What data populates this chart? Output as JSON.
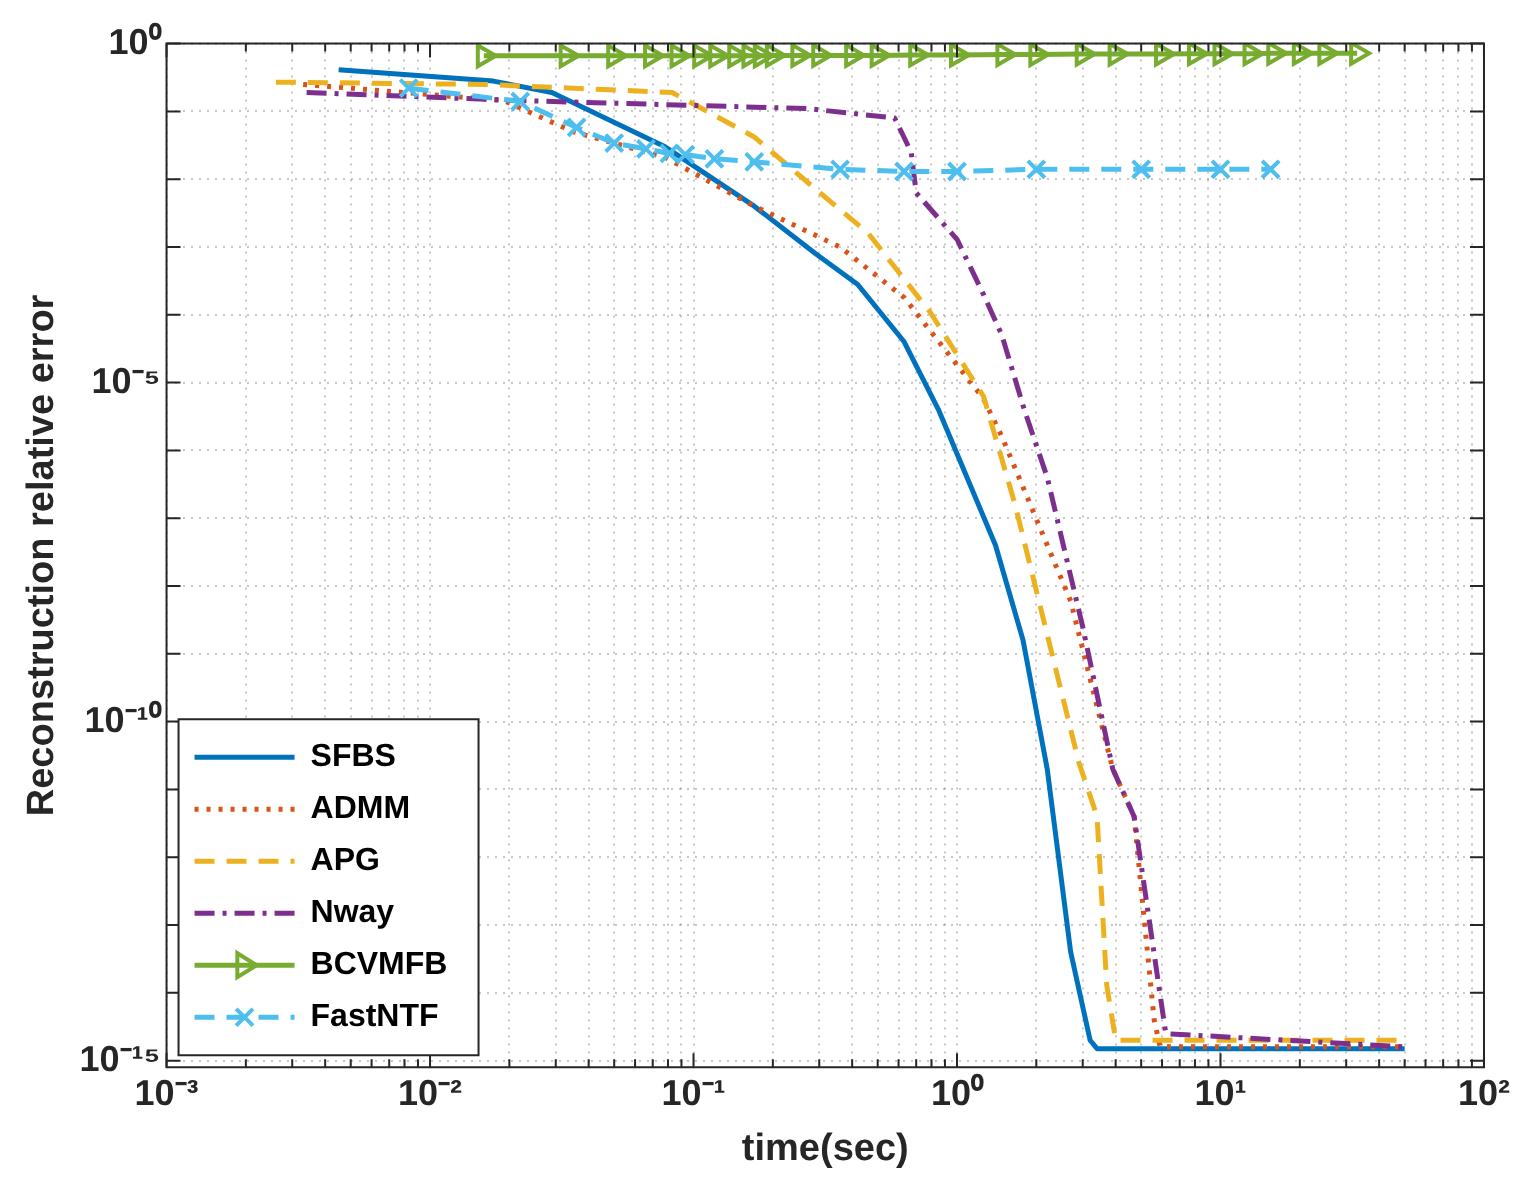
{
  "chart_data": {
    "type": "line",
    "xlabel": "time(sec)",
    "ylabel": "Reconstruction relative error",
    "log": "xy",
    "grid": true,
    "legend": "bottom left",
    "xlim": [
      0.001,
      100
    ],
    "xticks": [
      {
        "value": 0.001,
        "label": "10⁻³"
      },
      {
        "value": 0.002,
        "label": null
      },
      {
        "value": 0.003,
        "label": null
      },
      {
        "value": 0.004,
        "label": null
      },
      {
        "value": 0.005,
        "label": null
      },
      {
        "value": 0.006,
        "label": null
      },
      {
        "value": 0.007,
        "label": null
      },
      {
        "value": 0.008,
        "label": null
      },
      {
        "value": 0.009,
        "label": null
      },
      {
        "value": 0.01,
        "label": "10⁻²"
      },
      {
        "value": 0.02,
        "label": null
      },
      {
        "value": 0.03,
        "label": null
      },
      {
        "value": 0.04,
        "label": null
      },
      {
        "value": 0.05,
        "label": null
      },
      {
        "value": 0.06,
        "label": null
      },
      {
        "value": 0.07,
        "label": null
      },
      {
        "value": 0.08,
        "label": null
      },
      {
        "value": 0.09,
        "label": null
      },
      {
        "value": 0.1,
        "label": "10⁻¹"
      },
      {
        "value": 0.2,
        "label": null
      },
      {
        "value": 0.3,
        "label": null
      },
      {
        "value": 0.4,
        "label": null
      },
      {
        "value": 0.5,
        "label": null
      },
      {
        "value": 0.6,
        "label": null
      },
      {
        "value": 0.7,
        "label": null
      },
      {
        "value": 0.8,
        "label": null
      },
      {
        "value": 0.9,
        "label": null
      },
      {
        "value": 1,
        "label": "10⁰"
      },
      {
        "value": 2,
        "label": null
      },
      {
        "value": 3,
        "label": null
      },
      {
        "value": 4,
        "label": null
      },
      {
        "value": 5,
        "label": null
      },
      {
        "value": 6,
        "label": null
      },
      {
        "value": 7,
        "label": null
      },
      {
        "value": 8,
        "label": null
      },
      {
        "value": 9,
        "label": null
      },
      {
        "value": 10,
        "label": "10¹"
      },
      {
        "value": 20,
        "label": null
      },
      {
        "value": 30,
        "label": null
      },
      {
        "value": 40,
        "label": null
      },
      {
        "value": 50,
        "label": null
      },
      {
        "value": 60,
        "label": null
      },
      {
        "value": 70,
        "label": null
      },
      {
        "value": 80,
        "label": null
      },
      {
        "value": 90,
        "label": null
      },
      {
        "value": 100,
        "label": "10²"
      }
    ],
    "ylim": [
      8e-16,
      1
    ],
    "yticks": [
      {
        "value": 1e-15,
        "label": "10⁻¹⁵"
      },
      {
        "value": 1e-14,
        "label": null
      },
      {
        "value": 1e-13,
        "label": null
      },
      {
        "value": 1e-12,
        "label": null
      },
      {
        "value": 1e-11,
        "label": null
      },
      {
        "value": 1e-10,
        "label": "10⁻¹⁰"
      },
      {
        "value": 1e-09,
        "label": null
      },
      {
        "value": 1e-08,
        "label": null
      },
      {
        "value": 1e-07,
        "label": null
      },
      {
        "value": 1e-06,
        "label": null
      },
      {
        "value": 1e-05,
        "label": "10⁻⁵"
      },
      {
        "value": 0.0001,
        "label": null
      },
      {
        "value": 0.001,
        "label": null
      },
      {
        "value": 0.01,
        "label": null
      },
      {
        "value": 0.1,
        "label": null
      },
      {
        "value": 1,
        "label": "10⁰"
      }
    ],
    "series": [
      {
        "name": "SFBS",
        "color": "#0072bd",
        "line_style": "solid",
        "marker": "none",
        "x": [
          0.0045,
          0.0174,
          0.029,
          0.078,
          0.17,
          0.29,
          0.42,
          0.63,
          0.85,
          1.4,
          1.78,
          2.2,
          2.7,
          3.2,
          3.4,
          50
        ],
        "values": [
          0.41,
          0.28,
          0.19,
          0.03,
          0.004,
          0.0008,
          0.00028,
          4e-05,
          4e-06,
          4e-08,
          1.6e-09,
          2e-11,
          4e-14,
          2e-15,
          1.5e-15,
          1.5e-15
        ]
      },
      {
        "name": "ADMM",
        "color": "#d95319",
        "line_style": "dotted",
        "marker": "none",
        "x": [
          0.0033,
          0.019,
          0.035,
          0.078,
          0.17,
          0.36,
          0.63,
          1.26,
          1.48,
          2.7,
          3.9,
          4.7,
          5.6,
          5.9,
          50
        ],
        "values": [
          0.25,
          0.145,
          0.05,
          0.021,
          0.004,
          0.001,
          0.00018,
          5.8e-06,
          1.6e-06,
          6e-09,
          2e-11,
          4e-12,
          4e-15,
          1.6e-15,
          1.6e-15
        ]
      },
      {
        "name": "APG",
        "color": "#edb120",
        "line_style": "dashed",
        "marker": "none",
        "x": [
          0.0026,
          0.016,
          0.083,
          0.17,
          0.29,
          0.46,
          0.79,
          1.26,
          1.66,
          2.9,
          3.4,
          3.7,
          4,
          50
        ],
        "values": [
          0.27,
          0.25,
          0.19,
          0.042,
          0.0072,
          0.0016,
          0.00011,
          6.3e-06,
          1.6e-07,
          2.5e-11,
          4e-12,
          1.3e-14,
          2e-15,
          2e-15
        ]
      },
      {
        "name": "Nway",
        "color": "#7e2f8e",
        "line_style": "dashdot",
        "marker": "none",
        "x": [
          0.0034,
          0.021,
          0.27,
          0.58,
          0.67,
          0.7,
          1,
          1.26,
          1.48,
          1.8,
          2.2,
          3,
          3.9,
          4.7,
          6.2,
          50
        ],
        "values": [
          0.19,
          0.145,
          0.11,
          0.08,
          0.025,
          0.0063,
          0.0013,
          0.0002,
          5e-05,
          4e-06,
          4e-07,
          2.5e-09,
          2e-11,
          4e-12,
          2.5e-15,
          1.6e-15
        ]
      },
      {
        "name": "BCVMFB",
        "color": "#77ac30",
        "line_style": "solid",
        "marker": "triangle",
        "x": [
          0.016,
          0.033,
          0.05,
          0.069,
          0.087,
          0.106,
          0.122,
          0.144,
          0.163,
          0.18,
          0.2,
          0.25,
          0.3,
          0.4,
          0.5,
          0.7,
          1,
          1.5,
          2,
          3,
          4,
          6,
          8,
          10,
          13,
          16,
          20,
          25,
          33
        ],
        "values": [
          0.66,
          0.66,
          0.66,
          0.66,
          0.66,
          0.66,
          0.66,
          0.66,
          0.66,
          0.66,
          0.67,
          0.67,
          0.67,
          0.67,
          0.67,
          0.68,
          0.68,
          0.69,
          0.69,
          0.7,
          0.7,
          0.7,
          0.71,
          0.71,
          0.71,
          0.72,
          0.72,
          0.72,
          0.72
        ]
      },
      {
        "name": "FastNTF",
        "color": "#4dbeee",
        "line_style": "dashed",
        "marker": "cross",
        "x": [
          0.0083,
          0.022,
          0.036,
          0.05,
          0.066,
          0.081,
          0.093,
          0.12,
          0.17,
          0.36,
          0.63,
          1,
          2,
          5,
          10,
          15.5
        ],
        "values": [
          0.22,
          0.14,
          0.058,
          0.034,
          0.028,
          0.024,
          0.023,
          0.02,
          0.018,
          0.014,
          0.013,
          0.013,
          0.014,
          0.014,
          0.014,
          0.014
        ]
      }
    ]
  }
}
